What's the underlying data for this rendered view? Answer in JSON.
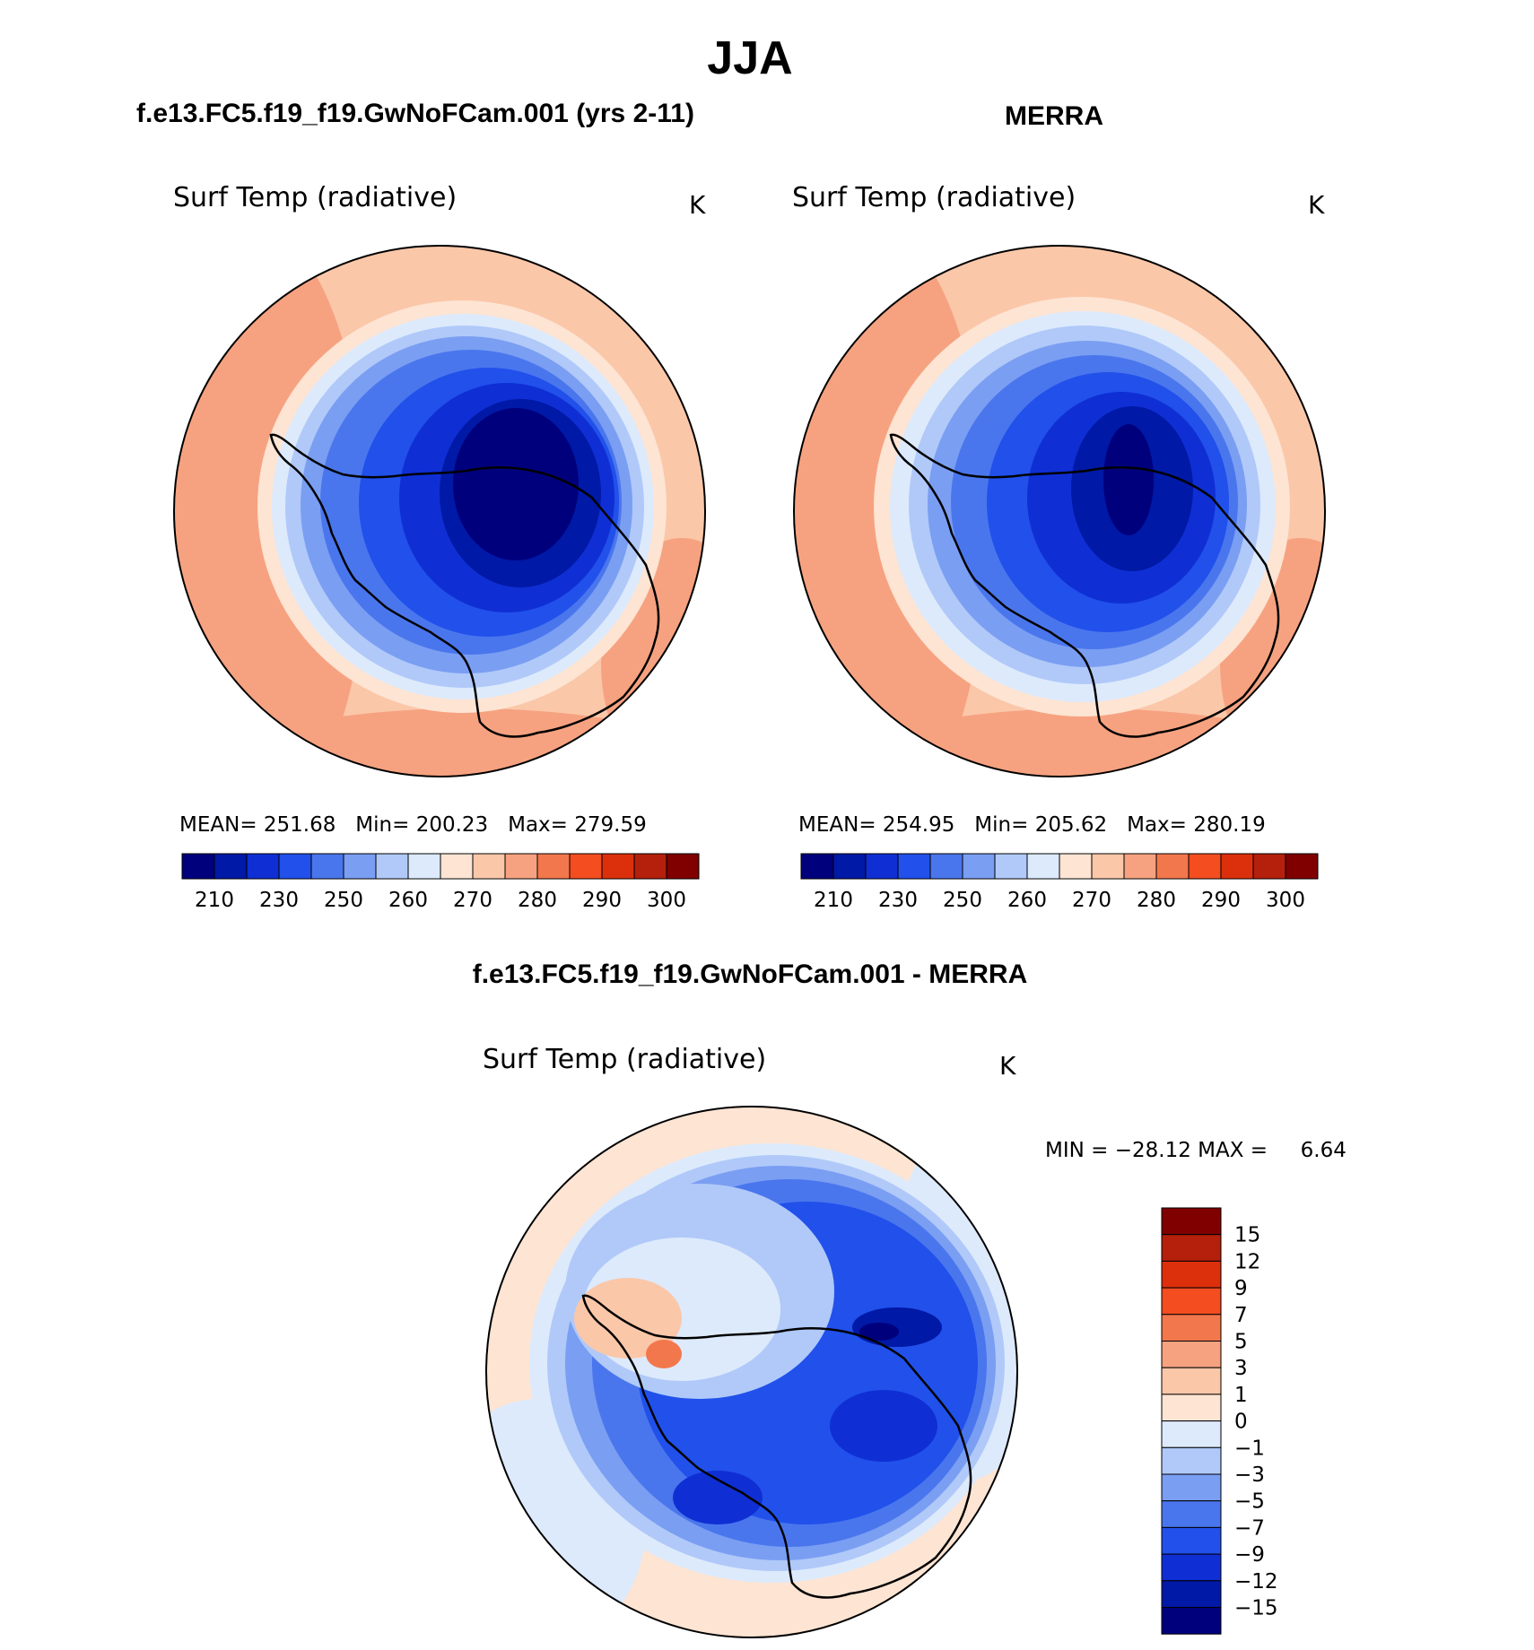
{
  "page_title": "JJA",
  "panels": [
    {
      "title": "f.e13.FC5.f19_f19.GwNoFCam.001 (yrs 2-11)",
      "variable": "Surf Temp (radiative)",
      "units": "K",
      "stats": "MEAN= 251.68   Min= 200.23   Max= 279.59"
    },
    {
      "title": "MERRA",
      "variable": "Surf Temp (radiative)",
      "units": "K",
      "stats": "MEAN= 254.95   Min= 205.62   Max= 280.19"
    }
  ],
  "abs_colorbar": {
    "colors": [
      "#00007d",
      "#0019a6",
      "#0f2fd4",
      "#2150eb",
      "#4a76ed",
      "#7a9ef2",
      "#b0c9f9",
      "#ddeafc",
      "#fde4d3",
      "#fbc7a9",
      "#f6a280",
      "#f3774c",
      "#f34d20",
      "#dc300c",
      "#b4200b",
      "#800000"
    ],
    "tick_labels": [
      "210",
      "230",
      "250",
      "260",
      "270",
      "280",
      "290",
      "300"
    ]
  },
  "diff_panel": {
    "title": "f.e13.FC5.f19_f19.GwNoFCam.001 - MERRA",
    "variable": "Surf Temp (radiative)",
    "units": "K",
    "minmax": "MIN = −28.12 MAX =     6.64"
  },
  "diff_colorbar": {
    "colors_top_to_bottom": [
      "#800000",
      "#b4200b",
      "#dc300c",
      "#f34d20",
      "#f3774c",
      "#f6a280",
      "#fbc7a9",
      "#fde4d3",
      "#ddeafc",
      "#b0c9f9",
      "#7a9ef2",
      "#4a76ed",
      "#2150eb",
      "#0f2fd4",
      "#0019a6",
      "#00007d"
    ],
    "tick_labels": [
      "15",
      "12",
      "9",
      "7",
      "5",
      "3",
      "1",
      "0",
      "−1",
      "−3",
      "−5",
      "−7",
      "−9",
      "−12",
      "−15"
    ]
  }
}
